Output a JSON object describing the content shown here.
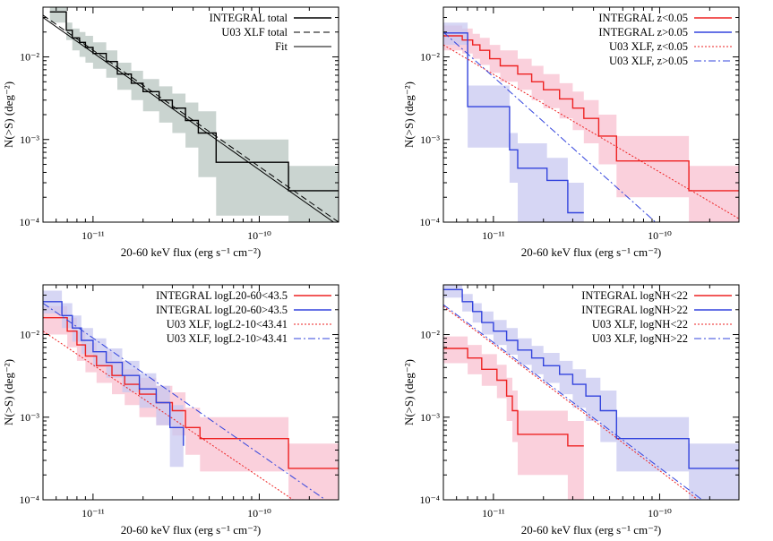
{
  "figure": {
    "panels": [
      {
        "xlabel": "20-60 keV flux (erg s⁻¹ cm⁻²)",
        "ylabel": "N(>S) (deg⁻²)",
        "legend": [
          {
            "text": "INTEGRAL total"
          },
          {
            "text": "U03 XLF total"
          },
          {
            "text": "Fit"
          }
        ]
      },
      {
        "xlabel": "20-60 keV flux (erg s⁻¹ cm⁻²)",
        "ylabel": "N(>S) (deg⁻²)",
        "legend": [
          {
            "text": "INTEGRAL z<0.05"
          },
          {
            "text": "INTEGRAL z>0.05"
          },
          {
            "text": "U03 XLF, z<0.05"
          },
          {
            "text": "U03 XLF, z>0.05"
          }
        ]
      },
      {
        "xlabel": "20-60 keV flux (erg s⁻¹ cm⁻²)",
        "ylabel": "N(>S) (deg⁻²)",
        "legend": [
          {
            "text": "INTEGRAL logL20-60<43.5"
          },
          {
            "text": "INTEGRAL logL20-60>43.5"
          },
          {
            "text": "U03 XLF, logL2-10<43.41"
          },
          {
            "text": "U03 XLF, logL2-10>43.41"
          }
        ]
      },
      {
        "xlabel": "20-60 keV flux (erg s⁻¹ cm⁻²)",
        "ylabel": "N(>S) (deg⁻²)",
        "legend": [
          {
            "text": "INTEGRAL logNH<22"
          },
          {
            "text": "INTEGRAL logNH>22"
          },
          {
            "text": "U03 XLF, logNH<22"
          },
          {
            "text": "U03 XLF, logNH>22"
          }
        ]
      }
    ]
  },
  "chart_data": [
    {
      "type": "line",
      "xscale": "log",
      "yscale": "log",
      "xlim": [
        5e-12,
        3e-10
      ],
      "ylim": [
        0.0001,
        0.04
      ],
      "xlabel": "20-60 keV flux (erg s⁻¹ cm⁻²)",
      "ylabel": "N(>S) (deg⁻²)",
      "xticks": [
        "10⁻¹¹",
        "10⁻¹⁰"
      ],
      "yticks": [
        "10⁻⁴",
        "10⁻³",
        "10⁻²"
      ],
      "legend_position": "top-right",
      "series": [
        {
          "name": "INTEGRAL total",
          "color": "#000000",
          "style": "step",
          "band_color": "#b8c5c0",
          "x": [
            5.5e-12,
            6.9e-12,
            7.5e-12,
            8.3e-12,
            9e-12,
            1e-11,
            1.2e-11,
            1.4e-11,
            1.7e-11,
            2e-11,
            2.5e-11,
            3e-11,
            3.6e-11,
            4.3e-11,
            5.5e-11,
            1.5e-10,
            3e-10
          ],
          "y": [
            0.035,
            0.021,
            0.017,
            0.015,
            0.013,
            0.011,
            0.0088,
            0.0062,
            0.0048,
            0.0038,
            0.003,
            0.0024,
            0.0017,
            0.0012,
            0.00053,
            0.00024,
            0.00024
          ],
          "band_low": [
            0.026,
            0.016,
            0.012,
            0.01,
            0.0085,
            0.0072,
            0.0056,
            0.004,
            0.003,
            0.0022,
            0.0016,
            0.0012,
            0.0008,
            0.00035,
            0.00012,
            0.0001,
            0.0001
          ],
          "band_high": [
            0.042,
            0.026,
            0.022,
            0.02,
            0.018,
            0.015,
            0.012,
            0.0085,
            0.0068,
            0.0054,
            0.0044,
            0.0036,
            0.0028,
            0.0022,
            0.001,
            0.00048,
            0.00048
          ]
        },
        {
          "name": "U03 XLF total",
          "color": "#000000",
          "style": "dashed",
          "x": [
            5e-12,
            3e-10
          ],
          "y": [
            0.032,
            0.0001
          ]
        },
        {
          "name": "Fit",
          "color": "#000000",
          "style": "solid",
          "x": [
            5e-12,
            2.8e-10
          ],
          "y": [
            0.03,
            0.0001
          ]
        }
      ]
    },
    {
      "type": "line",
      "xscale": "log",
      "yscale": "log",
      "xlim": [
        5e-12,
        3e-10
      ],
      "ylim": [
        0.0001,
        0.04
      ],
      "xlabel": "20-60 keV flux (erg s⁻¹ cm⁻²)",
      "ylabel": "N(>S) (deg⁻²)",
      "xticks": [
        "10⁻¹¹",
        "10⁻¹⁰"
      ],
      "yticks": [
        "10⁻⁴",
        "10⁻³",
        "10⁻²"
      ],
      "legend_position": "top-right",
      "series": [
        {
          "name": "INTEGRAL z<0.05",
          "color": "#ee2222",
          "style": "step",
          "band_color": "#f8c0d0",
          "x": [
            5e-12,
            6.5e-12,
            7.5e-12,
            8.3e-12,
            9.5e-12,
            1.1e-11,
            1.4e-11,
            1.7e-11,
            2e-11,
            2.5e-11,
            3e-11,
            3.5e-11,
            4.3e-11,
            5.5e-11,
            1.5e-10,
            3e-10
          ],
          "y": [
            0.018,
            0.016,
            0.014,
            0.012,
            0.0095,
            0.0078,
            0.0062,
            0.005,
            0.004,
            0.0031,
            0.0024,
            0.0018,
            0.0011,
            0.00055,
            0.00024,
            0.00024
          ],
          "band_low": [
            0.012,
            0.011,
            0.0095,
            0.008,
            0.0064,
            0.005,
            0.004,
            0.003,
            0.0024,
            0.0018,
            0.0013,
            0.0009,
            0.0005,
            0.0002,
            0.0001,
            0.0001
          ],
          "band_high": [
            0.024,
            0.022,
            0.019,
            0.017,
            0.014,
            0.012,
            0.0095,
            0.0078,
            0.0062,
            0.0048,
            0.0038,
            0.003,
            0.002,
            0.0011,
            0.00048,
            0.00048
          ]
        },
        {
          "name": "INTEGRAL z>0.05",
          "color": "#3344dd",
          "style": "step",
          "band_color": "#c8c8f0",
          "x": [
            5e-12,
            7e-12,
            1.25e-11,
            1.4e-11,
            2.1e-11,
            2.8e-11,
            3.5e-11
          ],
          "y": [
            0.0195,
            0.0025,
            0.00075,
            0.00045,
            0.00032,
            0.00013,
            0.00013
          ],
          "band_low": [
            0.014,
            0.0008,
            0.0003,
            0.0001,
            0.0001,
            0.0001,
            0.0001
          ],
          "band_high": [
            0.026,
            0.0045,
            0.0012,
            0.0009,
            0.0006,
            0.0003,
            0.0003
          ]
        },
        {
          "name": "U03 XLF, z<0.05",
          "color": "#ee2222",
          "style": "dotted",
          "x": [
            5e-12,
            3e-10
          ],
          "y": [
            0.014,
            0.00011
          ]
        },
        {
          "name": "U03 XLF, z>0.05",
          "color": "#3344dd",
          "style": "dashdot",
          "x": [
            5e-12,
            1e-10
          ],
          "y": [
            0.02,
            9e-05
          ]
        }
      ]
    },
    {
      "type": "line",
      "xscale": "log",
      "yscale": "log",
      "xlim": [
        5e-12,
        3e-10
      ],
      "ylim": [
        0.0001,
        0.04
      ],
      "xlabel": "20-60 keV flux (erg s⁻¹ cm⁻²)",
      "ylabel": "N(>S) (deg⁻²)",
      "xticks": [
        "10⁻¹¹",
        "10⁻¹⁰"
      ],
      "yticks": [
        "10⁻⁴",
        "10⁻³",
        "10⁻²"
      ],
      "legend_position": "top-right",
      "series": [
        {
          "name": "INTEGRAL logL20-60<43.5",
          "color": "#ee2222",
          "style": "step",
          "band_color": "#f8c0d0",
          "x": [
            5e-12,
            7e-12,
            8e-12,
            9e-12,
            1.05e-11,
            1.3e-11,
            1.55e-11,
            1.9e-11,
            2.4e-11,
            3e-11,
            3.6e-11,
            4.4e-11,
            5.5e-11,
            1.5e-10,
            3e-10
          ],
          "y": [
            0.016,
            0.011,
            0.0075,
            0.0055,
            0.0042,
            0.0032,
            0.0025,
            0.0019,
            0.0015,
            0.0012,
            0.00075,
            0.00055,
            0.00055,
            0.00024,
            0.00024
          ],
          "band_low": [
            0.01,
            0.007,
            0.0048,
            0.0035,
            0.0026,
            0.0019,
            0.0014,
            0.001,
            0.0008,
            0.0006,
            0.00035,
            0.00022,
            0.00022,
            0.0001,
            0.0001
          ],
          "band_high": [
            0.022,
            0.016,
            0.011,
            0.008,
            0.0062,
            0.0048,
            0.0038,
            0.003,
            0.0024,
            0.002,
            0.0013,
            0.001,
            0.001,
            0.00048,
            0.00048
          ]
        },
        {
          "name": "INTEGRAL logL20-60>43.5",
          "color": "#3344dd",
          "style": "step",
          "band_color": "#c8c8f0",
          "x": [
            5e-12,
            6.5e-12,
            7.5e-12,
            8.5e-12,
            1e-11,
            1.2e-11,
            1.5e-11,
            1.9e-11,
            2.4e-11,
            2.9e-11,
            3.5e-11
          ],
          "y": [
            0.025,
            0.017,
            0.012,
            0.0085,
            0.0062,
            0.0046,
            0.0032,
            0.0022,
            0.0015,
            0.00075,
            0.00045
          ],
          "band_low": [
            0.018,
            0.012,
            0.0082,
            0.0058,
            0.0041,
            0.003,
            0.002,
            0.0013,
            0.0008,
            0.00025,
            0.0001
          ],
          "band_high": [
            0.034,
            0.024,
            0.017,
            0.012,
            0.009,
            0.0068,
            0.0048,
            0.0034,
            0.0024,
            0.0014,
            0.0009
          ]
        },
        {
          "name": "U03 XLF, logL2-10<43.41",
          "color": "#ee2222",
          "style": "dotted",
          "x": [
            5e-12,
            1.6e-10
          ],
          "y": [
            0.011,
            0.0001
          ]
        },
        {
          "name": "U03 XLF, logL2-10>43.41",
          "color": "#3344dd",
          "style": "dashdot",
          "x": [
            5e-12,
            2.5e-10
          ],
          "y": [
            0.024,
            0.0001
          ]
        }
      ]
    },
    {
      "type": "line",
      "xscale": "log",
      "yscale": "log",
      "xlim": [
        5e-12,
        3e-10
      ],
      "ylim": [
        0.0001,
        0.04
      ],
      "xlabel": "20-60 keV flux (erg s⁻¹ cm⁻²)",
      "ylabel": "N(>S) (deg⁻²)",
      "xticks": [
        "10⁻¹¹",
        "10⁻¹⁰"
      ],
      "yticks": [
        "10⁻⁴",
        "10⁻³",
        "10⁻²"
      ],
      "legend_position": "top-right",
      "series": [
        {
          "name": "INTEGRAL logNH<22",
          "color": "#ee2222",
          "style": "step",
          "band_color": "#f8c0d0",
          "x": [
            5e-12,
            7e-12,
            8.5e-12,
            1.05e-11,
            1.2e-11,
            1.3e-11,
            1.4e-11,
            2.8e-11,
            3.5e-11
          ],
          "y": [
            0.0068,
            0.0052,
            0.0038,
            0.0028,
            0.0018,
            0.0012,
            0.00062,
            0.00045,
            0.00045
          ],
          "band_low": [
            0.0045,
            0.0033,
            0.0024,
            0.0017,
            0.0009,
            0.0005,
            0.0002,
            0.0001,
            0.0001
          ],
          "band_high": [
            0.0095,
            0.0075,
            0.0058,
            0.0043,
            0.003,
            0.0021,
            0.0012,
            0.0009,
            0.0009
          ]
        },
        {
          "name": "INTEGRAL logNH>22",
          "color": "#3344dd",
          "style": "step",
          "band_color": "#c8c8f0",
          "x": [
            5e-12,
            6.5e-12,
            7.5e-12,
            8.5e-12,
            1e-11,
            1.2e-11,
            1.4e-11,
            1.7e-11,
            2e-11,
            2.5e-11,
            3e-11,
            3.6e-11,
            4.4e-11,
            5.5e-11,
            1.5e-10,
            3e-10
          ],
          "y": [
            0.035,
            0.025,
            0.019,
            0.014,
            0.011,
            0.0085,
            0.0065,
            0.0052,
            0.0042,
            0.0033,
            0.0025,
            0.0018,
            0.0012,
            0.00055,
            0.00024,
            0.00024
          ],
          "band_low": [
            0.028,
            0.019,
            0.014,
            0.01,
            0.0075,
            0.0057,
            0.0043,
            0.0033,
            0.0026,
            0.0019,
            0.0013,
            0.0009,
            0.0005,
            0.00022,
            0.0001,
            0.0001
          ],
          "band_high": [
            0.042,
            0.031,
            0.024,
            0.019,
            0.015,
            0.012,
            0.009,
            0.0073,
            0.006,
            0.0048,
            0.0038,
            0.003,
            0.0021,
            0.001,
            0.00048,
            0.00048
          ]
        },
        {
          "name": "U03 XLF, logNH<22",
          "color": "#ee2222",
          "style": "dotted",
          "x": [
            5e-12,
            1.7e-10
          ],
          "y": [
            0.022,
            0.0001
          ]
        },
        {
          "name": "U03 XLF, logNH>22",
          "color": "#3344dd",
          "style": "dashdot",
          "x": [
            5e-12,
            1.8e-10
          ],
          "y": [
            0.023,
            0.0001
          ]
        }
      ]
    }
  ]
}
